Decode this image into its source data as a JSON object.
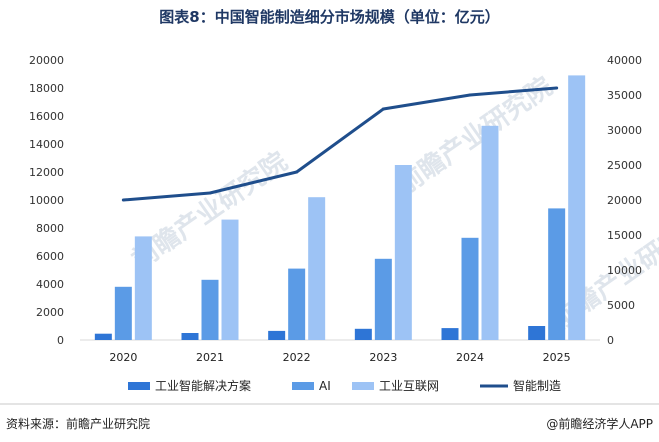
{
  "title": "图表8：中国智能制造细分市场规模（单位：亿元）",
  "source": "资料来源：前瞻产业研究院",
  "brand": "@前瞻经济学人APP",
  "watermark": "前瞻产业研究院",
  "chart_data": {
    "type": "bar",
    "categories": [
      "2020",
      "2021",
      "2022",
      "2023",
      "2024",
      "2025"
    ],
    "series": [
      {
        "name": "工业智能解决方案",
        "type": "bar",
        "axis": "left",
        "color": "#2e75d6",
        "values": [
          450,
          500,
          650,
          800,
          850,
          1000
        ]
      },
      {
        "name": "AI",
        "type": "bar",
        "axis": "left",
        "color": "#5b9be6",
        "values": [
          3800,
          4300,
          5100,
          5800,
          7300,
          9400
        ]
      },
      {
        "name": "工业互联网",
        "type": "bar",
        "axis": "left",
        "color": "#9dc3f5",
        "values": [
          7400,
          8600,
          10200,
          12500,
          15300,
          18900
        ]
      },
      {
        "name": "智能制造",
        "type": "line",
        "axis": "right",
        "color": "#1f4e8c",
        "values": [
          20000,
          21000,
          24000,
          33000,
          35000,
          36000
        ]
      }
    ],
    "y_left": {
      "min": 0,
      "max": 20000,
      "step": 2000,
      "ticks": [
        "0",
        "2000",
        "4000",
        "6000",
        "8000",
        "10000",
        "12000",
        "14000",
        "16000",
        "18000",
        "20000"
      ]
    },
    "y_right": {
      "min": 0,
      "max": 40000,
      "step": 5000,
      "ticks": [
        "0",
        "5000",
        "10000",
        "15000",
        "20000",
        "25000",
        "30000",
        "35000",
        "40000"
      ]
    },
    "grid": false,
    "legend_position": "bottom"
  }
}
